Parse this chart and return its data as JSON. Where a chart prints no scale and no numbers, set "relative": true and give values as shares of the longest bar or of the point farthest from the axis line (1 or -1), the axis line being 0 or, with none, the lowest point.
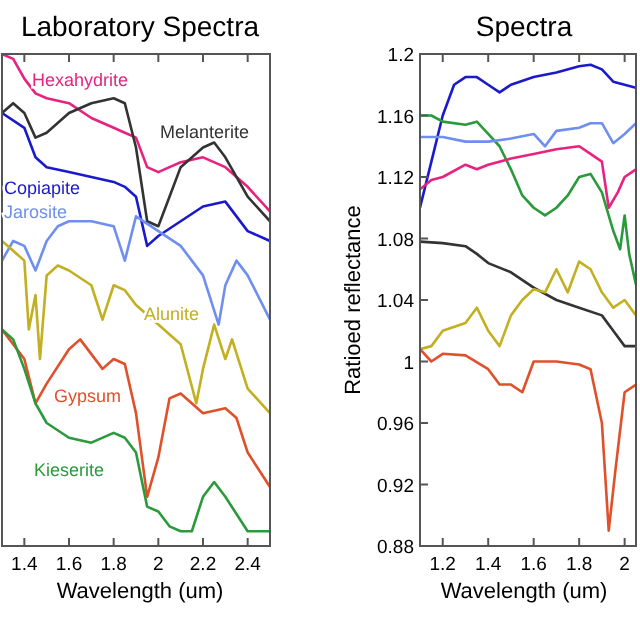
{
  "chart_data": [
    {
      "type": "line",
      "title": "Laboratory Spectra",
      "xlabel": "Wavelength (um)",
      "relative": true,
      "xlim": [
        1.3,
        2.5
      ],
      "xticks": [
        1.4,
        1.6,
        1.8,
        2,
        2.2,
        2.4
      ],
      "legend": false,
      "series": [
        {
          "name": "Hexahydrite",
          "color": "#e8237f",
          "x": [
            1.3,
            1.35,
            1.4,
            1.45,
            1.5,
            1.6,
            1.7,
            1.8,
            1.85,
            1.9,
            1.95,
            2.0,
            2.05,
            2.1,
            2.2,
            2.3,
            2.4,
            2.5
          ],
          "values": [
            1.0,
            0.99,
            0.95,
            0.92,
            0.91,
            0.9,
            0.87,
            0.85,
            0.84,
            0.83,
            0.77,
            0.76,
            0.77,
            0.78,
            0.79,
            0.77,
            0.73,
            0.68
          ]
        },
        {
          "name": "Melanterite",
          "color": "#333333",
          "x": [
            1.3,
            1.35,
            1.4,
            1.45,
            1.5,
            1.6,
            1.7,
            1.8,
            1.85,
            1.9,
            1.95,
            2.0,
            2.05,
            2.1,
            2.2,
            2.25,
            2.3,
            2.4,
            2.5
          ],
          "values": [
            0.88,
            0.9,
            0.88,
            0.83,
            0.84,
            0.88,
            0.9,
            0.91,
            0.9,
            0.81,
            0.66,
            0.65,
            0.71,
            0.77,
            0.81,
            0.82,
            0.79,
            0.71,
            0.66
          ]
        },
        {
          "name": "Copiapite",
          "color": "#1a1acc",
          "x": [
            1.3,
            1.4,
            1.45,
            1.5,
            1.6,
            1.7,
            1.8,
            1.85,
            1.9,
            1.95,
            2.0,
            2.1,
            2.2,
            2.3,
            2.4,
            2.5
          ],
          "values": [
            0.88,
            0.85,
            0.79,
            0.77,
            0.76,
            0.75,
            0.74,
            0.73,
            0.71,
            0.61,
            0.63,
            0.66,
            0.69,
            0.7,
            0.64,
            0.62
          ]
        },
        {
          "name": "Jarosite",
          "color": "#6f8ff0",
          "x": [
            1.3,
            1.35,
            1.4,
            1.45,
            1.5,
            1.55,
            1.6,
            1.7,
            1.8,
            1.85,
            1.9,
            2.0,
            2.1,
            2.2,
            2.27,
            2.3,
            2.35,
            2.4,
            2.5
          ],
          "values": [
            0.58,
            0.62,
            0.61,
            0.56,
            0.62,
            0.65,
            0.66,
            0.66,
            0.65,
            0.58,
            0.67,
            0.64,
            0.61,
            0.55,
            0.45,
            0.53,
            0.58,
            0.55,
            0.46
          ]
        },
        {
          "name": "Alunite",
          "color": "#c2b020",
          "x": [
            1.3,
            1.35,
            1.4,
            1.42,
            1.45,
            1.47,
            1.5,
            1.55,
            1.6,
            1.7,
            1.75,
            1.8,
            1.85,
            1.9,
            2.0,
            2.1,
            2.17,
            2.2,
            2.25,
            2.3,
            2.33,
            2.4,
            2.5
          ],
          "values": [
            0.62,
            0.6,
            0.58,
            0.44,
            0.51,
            0.38,
            0.55,
            0.57,
            0.56,
            0.53,
            0.46,
            0.53,
            0.52,
            0.49,
            0.45,
            0.41,
            0.29,
            0.36,
            0.45,
            0.38,
            0.42,
            0.32,
            0.27
          ]
        },
        {
          "name": "Gypsum",
          "color": "#e0502a",
          "x": [
            1.3,
            1.4,
            1.45,
            1.5,
            1.6,
            1.65,
            1.75,
            1.8,
            1.85,
            1.9,
            1.95,
            2.0,
            2.05,
            2.1,
            2.2,
            2.3,
            2.35,
            2.4,
            2.5
          ],
          "values": [
            0.44,
            0.38,
            0.29,
            0.33,
            0.4,
            0.42,
            0.36,
            0.38,
            0.37,
            0.27,
            0.1,
            0.18,
            0.3,
            0.31,
            0.27,
            0.28,
            0.26,
            0.19,
            0.12
          ]
        },
        {
          "name": "Kieserite",
          "color": "#2a9a3a",
          "x": [
            1.3,
            1.35,
            1.4,
            1.45,
            1.5,
            1.6,
            1.7,
            1.8,
            1.85,
            1.9,
            1.95,
            2.0,
            2.05,
            2.1,
            2.15,
            2.2,
            2.25,
            2.3,
            2.4,
            2.5
          ],
          "values": [
            0.44,
            0.42,
            0.36,
            0.29,
            0.25,
            0.22,
            0.21,
            0.23,
            0.22,
            0.19,
            0.08,
            0.07,
            0.04,
            0.03,
            0.03,
            0.1,
            0.13,
            0.1,
            0.03,
            0.03
          ]
        }
      ]
    },
    {
      "type": "line",
      "title": "Spectra",
      "xlabel": "Wavelength (um)",
      "ylabel": "Ratioed reflectance",
      "xlim": [
        1.1,
        2.05
      ],
      "xticks": [
        1.2,
        1.4,
        1.6,
        1.8,
        2
      ],
      "ylim": [
        0.88,
        1.2
      ],
      "yticks": [
        0.88,
        0.92,
        0.96,
        1,
        1.04,
        1.08,
        1.12,
        1.16,
        1.2
      ],
      "legend": false,
      "series": [
        {
          "color": "#1a1acc",
          "x": [
            1.1,
            1.15,
            1.2,
            1.25,
            1.3,
            1.35,
            1.4,
            1.45,
            1.5,
            1.6,
            1.7,
            1.8,
            1.85,
            1.9,
            1.95,
            2.0,
            2.05
          ],
          "values": [
            1.1,
            1.13,
            1.16,
            1.18,
            1.185,
            1.185,
            1.18,
            1.175,
            1.18,
            1.185,
            1.188,
            1.192,
            1.193,
            1.19,
            1.182,
            1.18,
            1.178
          ]
        },
        {
          "color": "#2a9a3a",
          "x": [
            1.1,
            1.15,
            1.2,
            1.3,
            1.35,
            1.4,
            1.45,
            1.5,
            1.55,
            1.6,
            1.65,
            1.7,
            1.75,
            1.8,
            1.85,
            1.9,
            1.95,
            1.98,
            2.0,
            2.02,
            2.05
          ],
          "values": [
            1.16,
            1.16,
            1.156,
            1.154,
            1.156,
            1.148,
            1.14,
            1.125,
            1.108,
            1.1,
            1.095,
            1.1,
            1.108,
            1.12,
            1.122,
            1.11,
            1.085,
            1.073,
            1.095,
            1.07,
            1.05
          ]
        },
        {
          "color": "#6f8ff0",
          "x": [
            1.1,
            1.2,
            1.3,
            1.4,
            1.5,
            1.6,
            1.65,
            1.7,
            1.8,
            1.85,
            1.9,
            1.95,
            2.0,
            2.05
          ],
          "values": [
            1.146,
            1.146,
            1.143,
            1.143,
            1.145,
            1.148,
            1.14,
            1.15,
            1.152,
            1.155,
            1.155,
            1.142,
            1.148,
            1.155
          ]
        },
        {
          "color": "#e8237f",
          "x": [
            1.1,
            1.15,
            1.2,
            1.3,
            1.35,
            1.4,
            1.5,
            1.6,
            1.7,
            1.8,
            1.85,
            1.9,
            1.93,
            1.97,
            2.0,
            2.05
          ],
          "values": [
            1.112,
            1.118,
            1.12,
            1.128,
            1.125,
            1.128,
            1.132,
            1.135,
            1.138,
            1.14,
            1.135,
            1.13,
            1.1,
            1.11,
            1.12,
            1.125
          ]
        },
        {
          "color": "#333333",
          "x": [
            1.1,
            1.2,
            1.3,
            1.35,
            1.4,
            1.5,
            1.6,
            1.7,
            1.8,
            1.9,
            1.95,
            2.0,
            2.05
          ],
          "values": [
            1.078,
            1.077,
            1.075,
            1.07,
            1.064,
            1.058,
            1.048,
            1.04,
            1.035,
            1.03,
            1.02,
            1.01,
            1.01
          ]
        },
        {
          "color": "#c2b020",
          "x": [
            1.1,
            1.15,
            1.2,
            1.3,
            1.35,
            1.4,
            1.45,
            1.5,
            1.55,
            1.6,
            1.65,
            1.7,
            1.75,
            1.8,
            1.85,
            1.9,
            1.95,
            2.0,
            2.05
          ],
          "values": [
            1.008,
            1.01,
            1.02,
            1.025,
            1.035,
            1.02,
            1.01,
            1.03,
            1.04,
            1.047,
            1.045,
            1.06,
            1.045,
            1.065,
            1.06,
            1.045,
            1.035,
            1.04,
            1.03
          ]
        },
        {
          "color": "#e0502a",
          "x": [
            1.1,
            1.15,
            1.2,
            1.3,
            1.4,
            1.45,
            1.5,
            1.55,
            1.6,
            1.7,
            1.8,
            1.85,
            1.9,
            1.93,
            1.96,
            2.0,
            2.05
          ],
          "values": [
            1.008,
            1.0,
            1.005,
            1.004,
            0.995,
            0.985,
            0.985,
            0.98,
            1.0,
            1.0,
            0.998,
            0.995,
            0.96,
            0.89,
            0.93,
            0.98,
            0.985
          ]
        }
      ]
    }
  ]
}
